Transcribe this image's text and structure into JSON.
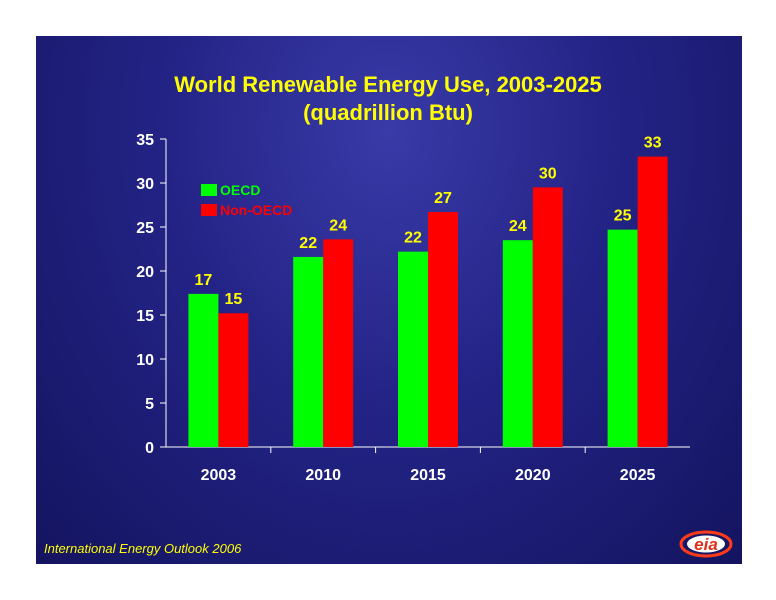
{
  "chart_data": {
    "type": "bar",
    "title": "World Renewable Energy Use, 2003-2025",
    "subtitle": "(quadrillion Btu)",
    "categories": [
      "2003",
      "2010",
      "2015",
      "2020",
      "2025"
    ],
    "series": [
      {
        "name": "OECD",
        "color": "#00ff00",
        "values": [
          17.4,
          21.6,
          22.2,
          23.5,
          24.7
        ],
        "labels": [
          "17",
          "22",
          "22",
          "24",
          "25"
        ]
      },
      {
        "name": "Non-OECD",
        "color": "#ff0000",
        "values": [
          15.2,
          23.6,
          26.7,
          29.5,
          33.0
        ],
        "labels": [
          "15",
          "24",
          "27",
          "30",
          "33"
        ]
      }
    ],
    "ylim": [
      0,
      35
    ],
    "yticks": [
      0,
      5,
      10,
      15,
      20,
      25,
      30,
      35
    ],
    "xlabel": "",
    "ylabel": "",
    "legend": "top-left",
    "grid": false
  },
  "footer": {
    "source": "International Energy Outlook 2006"
  },
  "logo": {
    "text": "eia"
  },
  "colors": {
    "background": "#232386",
    "title": "#ffff00",
    "axis": "#ffffff"
  }
}
